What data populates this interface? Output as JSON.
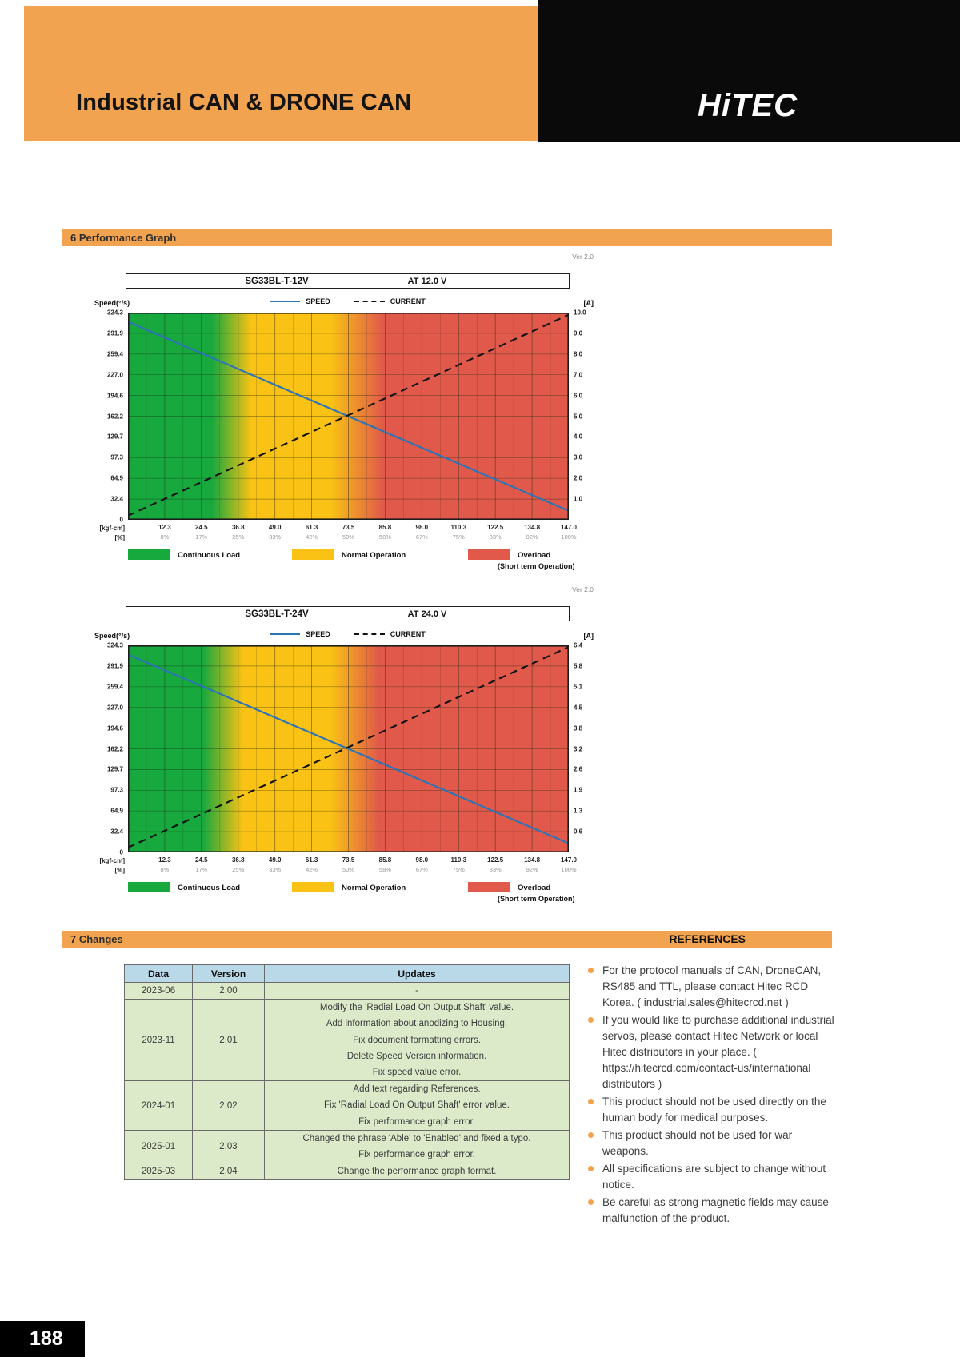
{
  "page": {
    "title": "Industrial CAN & DRONE CAN",
    "brand": "HiTEC",
    "page_number": "188"
  },
  "sections": {
    "performance": "6 Performance Graph",
    "changes": "7 Changes",
    "references": "REFERENCES"
  },
  "chart_data": [
    {
      "type": "line",
      "version_label": "Ver 2.0",
      "model": "SG33BL-T-12V",
      "condition": "AT 12.0 V",
      "legend": [
        "SPEED",
        "CURRENT"
      ],
      "y_left_label": "Speed(°/s)",
      "y_right_label": "[A]",
      "x_unit_label": "[kgf-cm]",
      "x_pct_label": "[%]",
      "x_max": 147.0,
      "y_left_max": 324.3,
      "y_right_max": 10.0,
      "y_left_ticks": [
        "324.3",
        "291.9",
        "259.4",
        "227.0",
        "194.6",
        "162.2",
        "129.7",
        "97.3",
        "64.9",
        "32.4",
        "0"
      ],
      "y_right_ticks": [
        "10.0",
        "9.0",
        "8.0",
        "7.0",
        "6.0",
        "5.0",
        "4.0",
        "3.0",
        "2.0",
        "1.0"
      ],
      "x_ticks": [
        "12.3",
        "24.5",
        "36.8",
        "49.0",
        "61.3",
        "73.5",
        "85.8",
        "98.0",
        "110.3",
        "122.5",
        "134.8",
        "147.0"
      ],
      "x_pct_ticks": [
        "8%",
        "17%",
        "25%",
        "33%",
        "42%",
        "50%",
        "58%",
        "67%",
        "75%",
        "83%",
        "92%",
        "100%"
      ],
      "series": [
        {
          "name": "SPEED",
          "axis": "left",
          "style": "solid",
          "color": "#2E74B5",
          "points": [
            [
              0,
              310
            ],
            [
              147,
              14
            ]
          ]
        },
        {
          "name": "CURRENT",
          "axis": "right",
          "style": "dashed",
          "color": "#151515",
          "points": [
            [
              0,
              0.2
            ],
            [
              147,
              9.9
            ]
          ]
        }
      ],
      "zones": [
        {
          "name": "Continuous Load",
          "color": "#17A83E",
          "solid_until_pct": 19,
          "blend_to_pct": 28
        },
        {
          "name": "Normal Operation",
          "color": "#F9C215",
          "solid_until_pct": 46,
          "blend_to_pct": 58
        },
        {
          "name": "Overload",
          "sub": "(Short term Operation)",
          "color": "#E0594A"
        }
      ]
    },
    {
      "type": "line",
      "version_label": "Ver 2.0",
      "model": "SG33BL-T-24V",
      "condition": "AT 24.0 V",
      "legend": [
        "SPEED",
        "CURRENT"
      ],
      "y_left_label": "Speed(°/s)",
      "y_right_label": "[A]",
      "x_unit_label": "[kgf-cm]",
      "x_pct_label": "[%]",
      "x_max": 147.0,
      "y_left_max": 324.3,
      "y_right_max": 6.4,
      "y_left_ticks": [
        "324.3",
        "291.9",
        "259.4",
        "227.0",
        "194.6",
        "162.2",
        "129.7",
        "97.3",
        "64.9",
        "32.4",
        "0"
      ],
      "y_right_ticks": [
        "6.4",
        "5.8",
        "5.1",
        "4.5",
        "3.8",
        "3.2",
        "2.6",
        "1.9",
        "1.3",
        "0.6"
      ],
      "x_ticks": [
        "12.3",
        "24.5",
        "36.8",
        "49.0",
        "61.3",
        "73.5",
        "85.8",
        "98.0",
        "110.3",
        "122.5",
        "134.8",
        "147.0"
      ],
      "x_pct_ticks": [
        "8%",
        "17%",
        "25%",
        "33%",
        "42%",
        "50%",
        "58%",
        "67%",
        "75%",
        "83%",
        "92%",
        "100%"
      ],
      "series": [
        {
          "name": "SPEED",
          "axis": "left",
          "style": "solid",
          "color": "#2E74B5",
          "points": [
            [
              0,
              310
            ],
            [
              147,
              14
            ]
          ]
        },
        {
          "name": "CURRENT",
          "axis": "right",
          "style": "dashed",
          "color": "#151515",
          "points": [
            [
              0,
              0.15
            ],
            [
              147,
              6.35
            ]
          ]
        }
      ],
      "zones": [
        {
          "name": "Continuous Load",
          "color": "#17A83E",
          "solid_until_pct": 17,
          "blend_to_pct": 26
        },
        {
          "name": "Normal Operation",
          "color": "#F9C215",
          "solid_until_pct": 46,
          "blend_to_pct": 57
        },
        {
          "name": "Overload",
          "sub": "(Short term Operation)",
          "color": "#E0594A"
        }
      ]
    }
  ],
  "changes_table": {
    "headers": [
      "Data",
      "Version",
      "Updates"
    ],
    "rows": [
      {
        "date": "2023-06",
        "version": "2.00",
        "updates": [
          "-"
        ]
      },
      {
        "date": "2023-11",
        "version": "2.01",
        "updates": [
          "Modify the 'Radial Load On Output Shaft' value.",
          "Add information about anodizing to Housing.",
          "Fix document formatting errors.",
          "Delete Speed Version information.",
          "Fix speed value error."
        ]
      },
      {
        "date": "2024-01",
        "version": "2.02",
        "updates": [
          "Add text regarding References.",
          "Fix 'Radial Load On Output Shaft' error value.",
          "Fix performance graph error."
        ]
      },
      {
        "date": "2025-01",
        "version": "2.03",
        "updates": [
          "Changed the phrase 'Able' to 'Enabled' and fixed a typo.",
          "Fix performance graph error."
        ]
      },
      {
        "date": "2025-03",
        "version": "2.04",
        "updates": [
          "Change the performance graph format."
        ]
      }
    ]
  },
  "references": {
    "items": [
      "For the protocol manuals of CAN, DroneCAN, RS485 and TTL, please contact Hitec RCD Korea. ( industrial.sales@hitecrcd.net )",
      "If you would like to purchase additional industrial servos, please contact Hitec Network or local Hitec distributors in your place. ( https://hitecrcd.com/contact-us/international distributors )",
      "This product should not be used directly on the human body for medical purposes.",
      "This product should not be used for war weapons.",
      "All specifications are subject to change without notice.",
      "Be careful as strong magnetic fields may cause malfunction of the product."
    ]
  }
}
